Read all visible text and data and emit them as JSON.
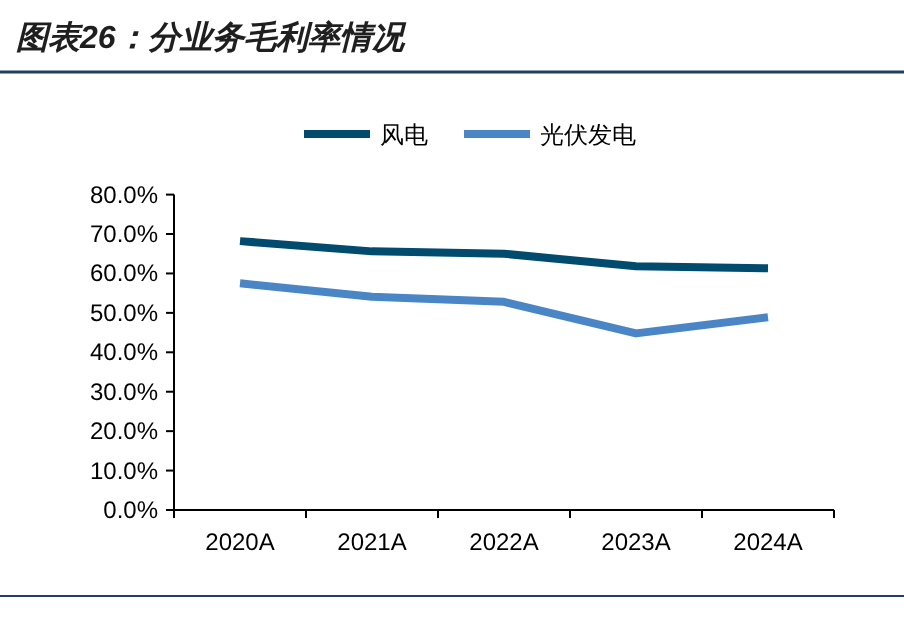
{
  "chart_data": {
    "type": "line",
    "title": "图表26：分业务毛利率情况",
    "categories": [
      "2020A",
      "2021A",
      "2022A",
      "2023A",
      "2024A"
    ],
    "series": [
      {
        "name": "风电",
        "color": "#004b6e",
        "values": [
          68.2,
          65.6,
          65.0,
          61.8,
          61.3
        ]
      },
      {
        "name": "光伏发电",
        "color": "#4a86c5",
        "values": [
          57.5,
          54.1,
          52.8,
          44.8,
          48.9
        ]
      }
    ],
    "ylim": [
      0,
      80
    ],
    "yticks": [
      {
        "value": 0,
        "label": "0.0%"
      },
      {
        "value": 10,
        "label": "10.0%"
      },
      {
        "value": 20,
        "label": "20.0%"
      },
      {
        "value": 30,
        "label": "30.0%"
      },
      {
        "value": 40,
        "label": "40.0%"
      },
      {
        "value": 50,
        "label": "50.0%"
      },
      {
        "value": 60,
        "label": "60.0%"
      },
      {
        "value": 70,
        "label": "70.0%"
      },
      {
        "value": 80,
        "label": "80.0%"
      }
    ],
    "legend": "top",
    "grid": false,
    "marker": "none",
    "line_style": "solid"
  }
}
